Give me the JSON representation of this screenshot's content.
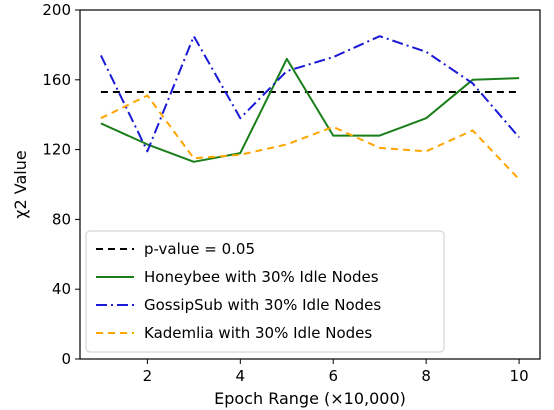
{
  "chart_data": {
    "type": "line",
    "xlabel": "Epoch Range (×10,000)",
    "ylabel": "χ2 Value",
    "xlim": [
      0.55,
      10.45
    ],
    "ylim": [
      0,
      200
    ],
    "xticks": [
      2,
      4,
      6,
      8,
      10
    ],
    "yticks": [
      0,
      40,
      80,
      120,
      160,
      200
    ],
    "grid": false,
    "legend_position": "lower-left",
    "x": [
      1,
      2,
      3,
      4,
      5,
      6,
      7,
      8,
      9,
      10
    ],
    "series": [
      {
        "name": "p-value = 0.05",
        "style": "dashed",
        "color": "#000000",
        "values": [
          153,
          153,
          153,
          153,
          153,
          153,
          153,
          153,
          153,
          153
        ]
      },
      {
        "name": "Honeybee with 30% Idle Nodes",
        "style": "solid",
        "color": "#1a7f1a",
        "values": [
          135,
          123,
          113,
          118,
          172,
          128,
          128,
          138,
          160,
          161
        ]
      },
      {
        "name": "GossipSub with 30% Idle Nodes",
        "style": "dashdot",
        "color": "#1a1ad6",
        "values": [
          174,
          119,
          185,
          138,
          165,
          173,
          185,
          176,
          158,
          127
        ]
      },
      {
        "name": "Kademlia with 30% Idle Nodes",
        "style": "dashed",
        "color": "#ffa500",
        "values": [
          138,
          151,
          115,
          117,
          123,
          133,
          121,
          119,
          131,
          103
        ]
      }
    ]
  }
}
